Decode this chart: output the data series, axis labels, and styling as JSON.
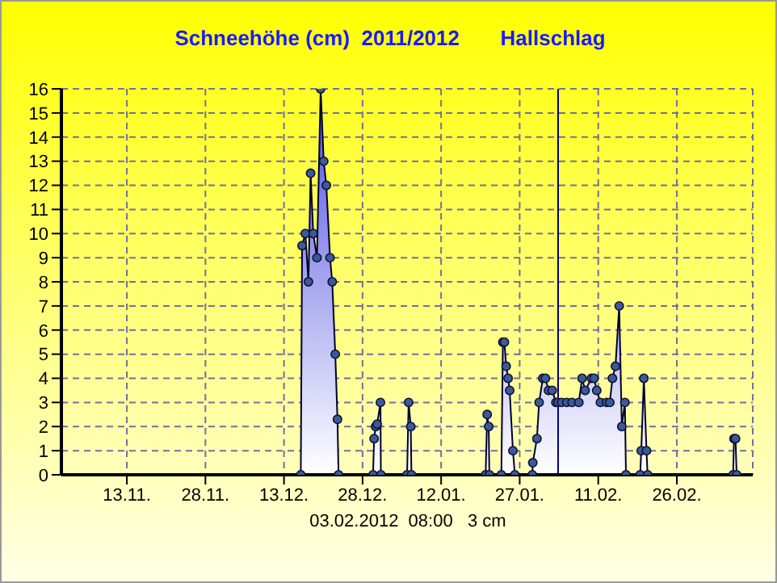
{
  "chart_data": {
    "type": "area",
    "title": "Schneehöhe (cm)  2011/2012       Hallschlag",
    "marker": "circle",
    "line_style": "solid",
    "grid": true,
    "xlim": [
      "2011-10-31T12:00",
      "2012-03-11T12:00"
    ],
    "xticks": [
      {
        "value": "2011-11-13",
        "label": "13.11."
      },
      {
        "value": "2011-11-28",
        "label": "28.11."
      },
      {
        "value": "2011-12-13",
        "label": "13.12."
      },
      {
        "value": "2011-12-28",
        "label": "28.12."
      },
      {
        "value": "2012-01-12",
        "label": "12.01."
      },
      {
        "value": "2012-01-27",
        "label": "27.01."
      },
      {
        "value": "2012-02-11",
        "label": "11.02."
      },
      {
        "value": "2012-02-26",
        "label": "26.02."
      }
    ],
    "ylim": [
      0,
      16
    ],
    "yticks": [
      0,
      1,
      2,
      3,
      4,
      5,
      6,
      7,
      8,
      9,
      10,
      11,
      12,
      13,
      14,
      15,
      16
    ],
    "ref_lines": [
      {
        "axis": "x",
        "value": "2012-02-03T08:00",
        "color": "#000080"
      }
    ],
    "annotations": [
      "03.02.2012  08:00   3 cm"
    ],
    "series": [
      {
        "color": "#4d4de0",
        "x": [
          "2011-12-16T05:00",
          "2011-12-16T11:00",
          "2011-12-17T02:00",
          "2011-12-17T16:00",
          "2011-12-18T02:00",
          "2011-12-18T14:00",
          "2011-12-19T07:00",
          "2011-12-20T00:00",
          "2011-12-20T14:00",
          "2011-12-21T02:00",
          "2011-12-21T19:00",
          "2011-12-22T05:00",
          "2011-12-22T19:00",
          "2011-12-23T05:00",
          "2011-12-23T10:00",
          "2011-12-30T00:00",
          "2011-12-30T05:00",
          "2011-12-30T12:00",
          "2011-12-30T19:00",
          "2011-12-31T10:00",
          "2011-12-31T12:00",
          "2012-01-05T12:00",
          "2012-01-05T19:00",
          "2012-01-06T05:00",
          "2012-01-06T08:00",
          "2012-01-20T12:00",
          "2012-01-20T19:00",
          "2012-01-21T02:00",
          "2012-01-21T05:00",
          "2012-01-23T12:00",
          "2012-01-23T19:00",
          "2012-01-24T02:00",
          "2012-01-24T10:00",
          "2012-01-24T19:00",
          "2012-01-25T02:00",
          "2012-01-25T17:00",
          "2012-01-26T02:00",
          "2012-01-29T10:00",
          "2012-01-29T12:00",
          "2012-01-30T07:00",
          "2012-01-30T17:00",
          "2012-01-31T10:00",
          "2012-01-31T22:00",
          "2012-02-01T12:00",
          "2012-02-02T05:00",
          "2012-02-02T22:00",
          "2012-02-03T08:00",
          "2012-02-04T00:00",
          "2012-02-05T00:00",
          "2012-02-06T00:00",
          "2012-02-07T07:00",
          "2012-02-07T22:00",
          "2012-02-08T12:00",
          "2012-02-09T17:00",
          "2012-02-10T05:00",
          "2012-02-10T17:00",
          "2012-02-11T10:00",
          "2012-02-12T14:00",
          "2012-02-13T05:00",
          "2012-02-13T17:00",
          "2012-02-14T07:00",
          "2012-02-15T00:00",
          "2012-02-15T12:00",
          "2012-02-16T02:00",
          "2012-02-16T07:00",
          "2012-02-19T00:00",
          "2012-02-19T05:00",
          "2012-02-19T17:00",
          "2012-02-20T05:00",
          "2012-02-20T10:00",
          "2012-03-07T18:00",
          "2012-03-07T22:00",
          "2012-03-08T05:00",
          "2012-03-08T10:00"
        ],
        "values": [
          0,
          9.5,
          10,
          8,
          12.5,
          10,
          9,
          16,
          13,
          12,
          9,
          8,
          5,
          2.3,
          0,
          0,
          1.5,
          2,
          2.1,
          3,
          0,
          0,
          3,
          2,
          0,
          0,
          2.5,
          2,
          0,
          0,
          5.5,
          5.5,
          4.5,
          4,
          3.5,
          1,
          0,
          0,
          0.5,
          1.5,
          3,
          4,
          4,
          3.5,
          3.5,
          3,
          3,
          3,
          3,
          3,
          3,
          4,
          3.5,
          4,
          4,
          3.5,
          3,
          3,
          3,
          4,
          4.5,
          7,
          2,
          3,
          0,
          0,
          1,
          4,
          1,
          0,
          0,
          1.5,
          1.5,
          0
        ]
      }
    ]
  }
}
